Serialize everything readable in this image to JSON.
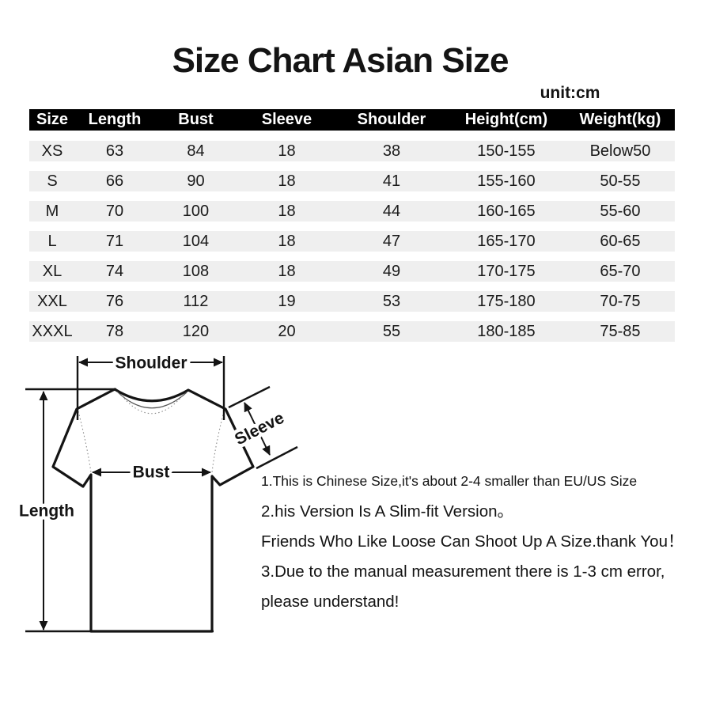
{
  "title": "Size Chart Asian Size",
  "unit_label": "unit:cm",
  "chart_data": {
    "type": "table",
    "title": "Size Chart Asian Size",
    "unit": "cm",
    "columns": [
      "Size",
      "Length",
      "Bust",
      "Sleeve",
      "Shoulder",
      "Height(cm)",
      "Weight(kg)"
    ],
    "rows": [
      [
        "XS",
        "63",
        "84",
        "18",
        "38",
        "150-155",
        "Below50"
      ],
      [
        "S",
        "66",
        "90",
        "18",
        "41",
        "155-160",
        "50-55"
      ],
      [
        "M",
        "70",
        "100",
        "18",
        "44",
        "160-165",
        "55-60"
      ],
      [
        "L",
        "71",
        "104",
        "18",
        "47",
        "165-170",
        "60-65"
      ],
      [
        "XL",
        "74",
        "108",
        "18",
        "49",
        "170-175",
        "65-70"
      ],
      [
        "XXL",
        "76",
        "112",
        "19",
        "53",
        "175-180",
        "70-75"
      ],
      [
        "XXXL",
        "78",
        "120",
        "20",
        "55",
        "180-185",
        "75-85"
      ]
    ]
  },
  "diagram": {
    "labels": {
      "shoulder": "Shoulder",
      "sleeve": "Sleeve",
      "bust": "Bust",
      "length": "Length"
    }
  },
  "notes": [
    "1.This is Chinese Size,it's about 2-4 smaller than EU/US Size",
    "2.his Version Is A Slim-fit Version。",
    "Friends Who Like Loose Can Shoot Up A Size.thank You！",
    "3.Due to the manual measurement there is 1-3 cm error,",
    "please understand!"
  ],
  "colors": {
    "header_bg": "#000000",
    "header_text": "#ffffff",
    "row_band": "#efefef",
    "ink": "#141414"
  }
}
